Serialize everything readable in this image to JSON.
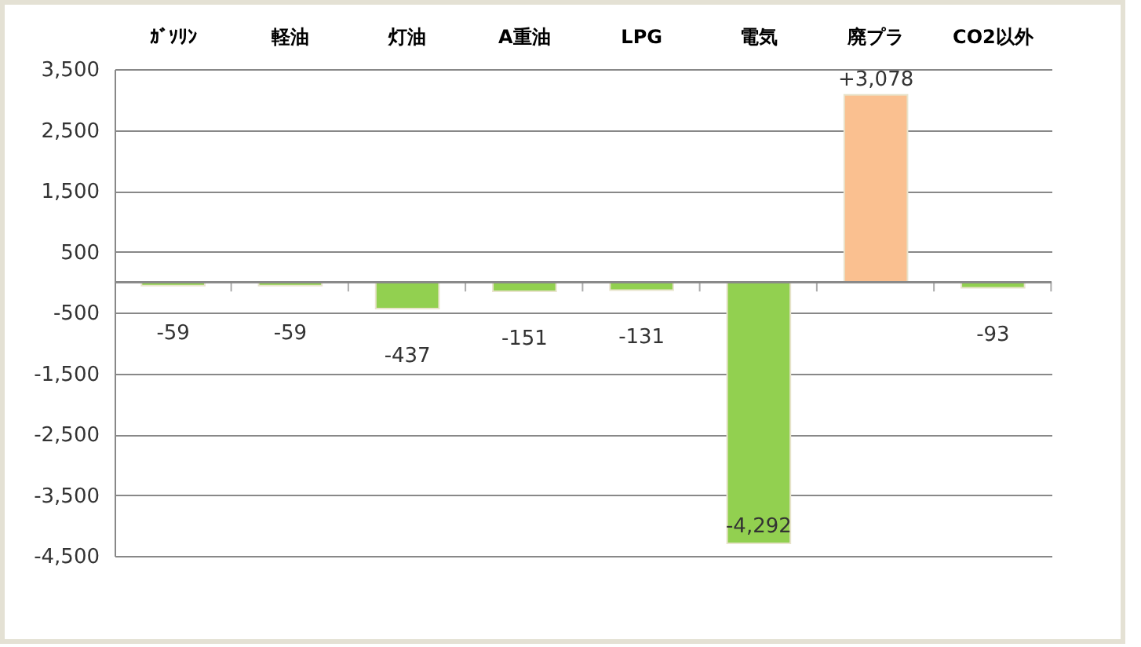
{
  "chart_data": {
    "type": "bar",
    "categories": [
      "ｶﾞｿﾘﾝ",
      "軽油",
      "灯油",
      "A重油",
      "LPG",
      "電気",
      "廃プラ",
      "CO2以外"
    ],
    "values": [
      -59,
      -59,
      -437,
      -151,
      -131,
      -4292,
      3078,
      -93
    ],
    "colors": [
      "#92d050",
      "#92d050",
      "#92d050",
      "#92d050",
      "#92d050",
      "#92d050",
      "#fac090",
      "#92d050"
    ],
    "value_labels": [
      "-59",
      "-59",
      "-437",
      "-151",
      "-131",
      "-4,292",
      "+3,078",
      "-93"
    ],
    "ylim": [
      -4500,
      3500
    ],
    "yticks": [
      {
        "value": 3500,
        "label": "3,500"
      },
      {
        "value": 2500,
        "label": "2,500"
      },
      {
        "value": 1500,
        "label": "1,500"
      },
      500,
      -500,
      {
        "value": -1500,
        "label": "-1,500"
      },
      {
        "value": -2500,
        "label": "-2,500"
      },
      {
        "value": -3500,
        "label": "-3,500"
      },
      {
        "value": -4500,
        "label": "-4,500"
      }
    ],
    "grid": "y"
  }
}
